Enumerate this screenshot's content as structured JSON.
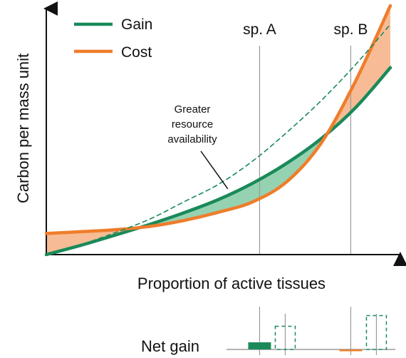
{
  "chart_data": [
    {
      "type": "line",
      "xlabel": "Proportion of active tissues",
      "ylabel": "Carbon per mass unit",
      "xlim": [
        0,
        1
      ],
      "ylim": [
        0,
        1
      ],
      "grid": false,
      "legend_placement": "top-left",
      "legend": [
        {
          "name": "Gain",
          "color": "#1a8a5a"
        },
        {
          "name": "Cost",
          "color": "#ef7d2b"
        }
      ],
      "series": [
        {
          "name": "Gain",
          "color": "#1a8a5a",
          "x": [
            0,
            0.1,
            0.2,
            0.3,
            0.4,
            0.5,
            0.6,
            0.7,
            0.8,
            0.9,
            1.0
          ],
          "y": [
            0,
            0.037,
            0.078,
            0.121,
            0.168,
            0.221,
            0.287,
            0.368,
            0.467,
            0.592,
            0.751
          ]
        },
        {
          "name": "Cost",
          "color": "#ef7d2b",
          "x": [
            0,
            0.1,
            0.2,
            0.3,
            0.4,
            0.5,
            0.6,
            0.7,
            0.8,
            0.9,
            1.0
          ],
          "y": [
            0.085,
            0.092,
            0.1,
            0.113,
            0.137,
            0.17,
            0.212,
            0.294,
            0.45,
            0.7,
            1.0
          ]
        },
        {
          "name": "",
          "style": "dashed",
          "color": "#1a8a5a",
          "x": [
            0,
            0.1,
            0.2,
            0.3,
            0.4,
            0.5,
            0.6,
            0.7,
            0.8,
            0.9,
            1.0
          ],
          "y": [
            0,
            0.04,
            0.088,
            0.142,
            0.212,
            0.282,
            0.376,
            0.492,
            0.62,
            0.765,
            0.925
          ]
        }
      ],
      "reference_lines": [
        {
          "label": "sp. A",
          "x": 0.62
        },
        {
          "label": "sp. B",
          "x": 0.885
        }
      ],
      "annotations": [
        {
          "text_lines": [
            "Greater",
            "resource",
            "availability"
          ],
          "points_to": {
            "x": 0.54,
            "y": 0.27
          }
        }
      ]
    },
    {
      "type": "bar",
      "title": "Net gain",
      "categories": [
        "sp. A",
        "sp. B"
      ],
      "series": [
        {
          "name": "",
          "color": "#1a8a5a",
          "style": "solid",
          "values": [
            0.04,
            -0.01
          ]
        },
        {
          "name": "",
          "color": "#1a8a5a",
          "style": "dashed",
          "values": [
            0.13,
            0.19
          ]
        }
      ]
    }
  ]
}
